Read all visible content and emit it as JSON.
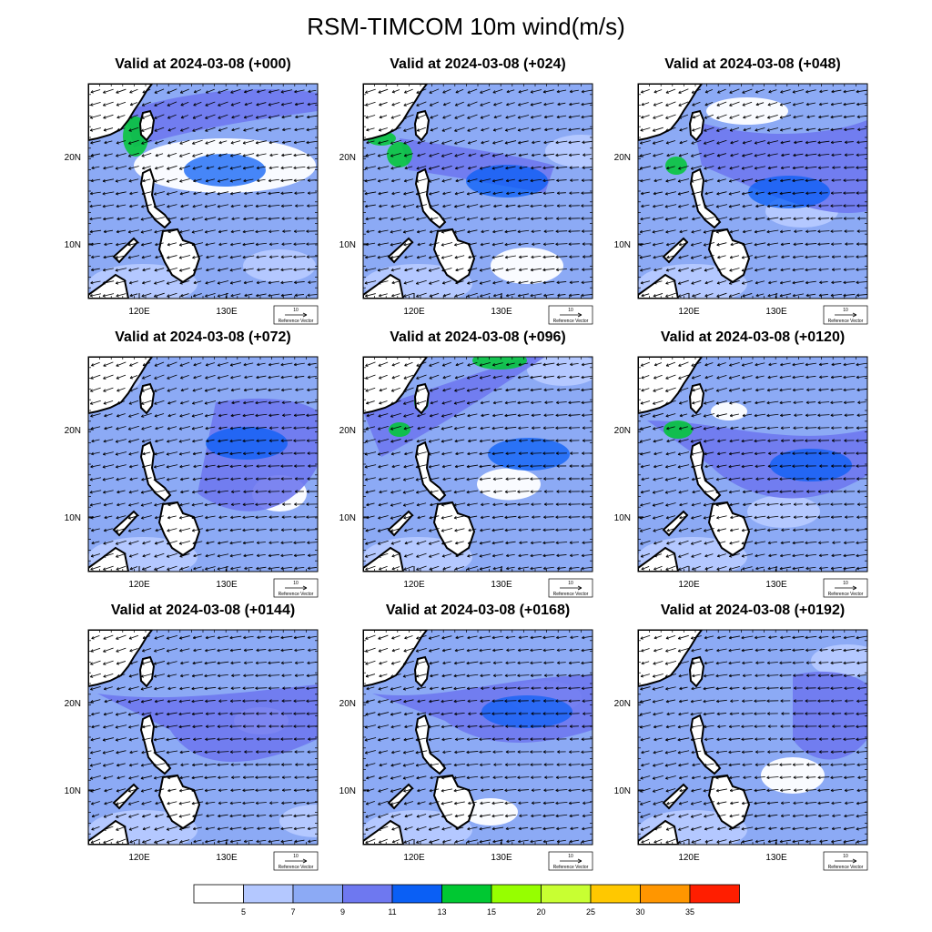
{
  "title": "RSM-TIMCOM 10m wind(m/s)",
  "panels": [
    {
      "title": "Valid at 2024-03-08 (+000)"
    },
    {
      "title": "Valid at 2024-03-08 (+024)"
    },
    {
      "title": "Valid at 2024-03-08 (+048)"
    },
    {
      "title": "Valid at 2024-03-08 (+072)"
    },
    {
      "title": "Valid at 2024-03-08 (+096)"
    },
    {
      "title": "Valid at 2024-03-08 (+0120)"
    },
    {
      "title": "Valid at 2024-03-08 (+0144)"
    },
    {
      "title": "Valid at 2024-03-08 (+0168)"
    },
    {
      "title": "Valid at 2024-03-08 (+0192)"
    }
  ],
  "axes": {
    "lat_labels": [
      "20N",
      "10N"
    ],
    "lon_labels": [
      "120E",
      "130E"
    ]
  },
  "reference_vector": {
    "value": "10",
    "label": "Reference Vector"
  },
  "colorbar": {
    "levels": [
      "5",
      "7",
      "9",
      "11",
      "13",
      "15",
      "20",
      "25",
      "30",
      "35"
    ],
    "colors": [
      "#ffffff",
      "#b4c8ff",
      "#8caaf5",
      "#6e78f0",
      "#0a5ff5",
      "#00c832",
      "#96ff00",
      "#c8ff32",
      "#ffc800",
      "#ff9600",
      "#ff1e00"
    ]
  }
}
